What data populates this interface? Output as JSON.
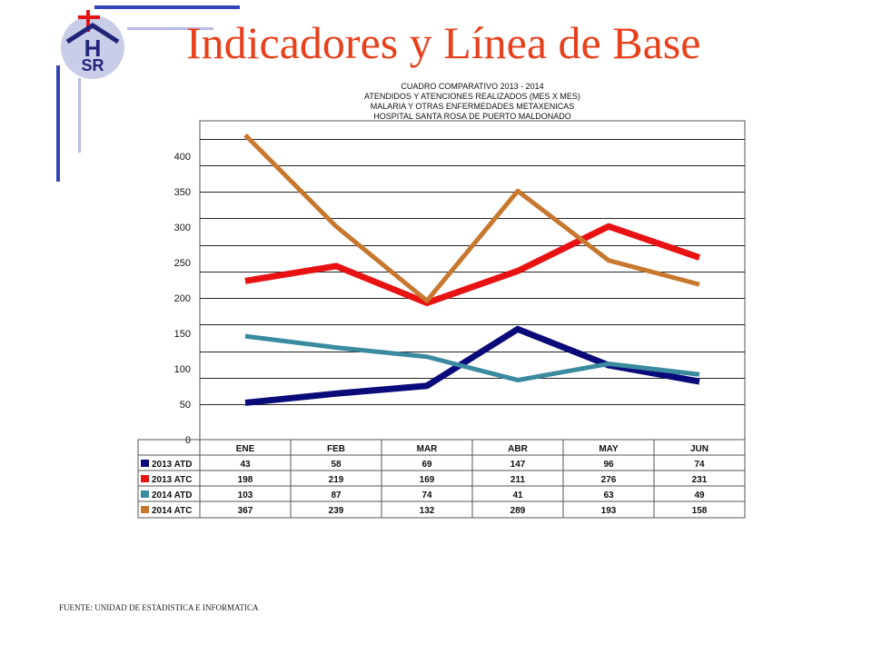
{
  "slide": {
    "title": "Indicadores y Línea de Base",
    "logo_text": {
      "top": "H",
      "bottom": "SR"
    },
    "source": "FUENTE: UNIDAD DE ESTADISTICA E INFORMATICA"
  },
  "colors": {
    "title": "#e8401c",
    "accent_blue": "#3344bb",
    "accent_light": "#b9bde6",
    "s2013atd": "#0a0a7a",
    "s2013atc": "#e81212",
    "s2014atd": "#3a8aa0",
    "s2014atc": "#c8772e"
  },
  "chart_data": {
    "type": "line",
    "title_lines": [
      "CUADRO COMPARATIVO  2013 - 2014",
      "ATENDIDOS  Y ATENCIONES  REALIZADOS (MES X MES)",
      "MALARIA Y OTRAS ENFERMEDADES METAXENICAS",
      "HOSPITAL  SANTA ROSA DE PUERTO MALDONADO"
    ],
    "categories": [
      "ENE",
      "FEB",
      "MAR",
      "ABR",
      "MAY",
      "JUN"
    ],
    "ylim": [
      0,
      450
    ],
    "y_ticks": [
      0,
      50,
      100,
      150,
      200,
      250,
      300,
      350,
      400
    ],
    "grid": true,
    "series": [
      {
        "name": "2013 ATD",
        "color": "#0a0a7a",
        "values": [
          43,
          58,
          69,
          147,
          96,
          74
        ]
      },
      {
        "name": "2013 ATC",
        "color": "#e81212",
        "values": [
          198,
          219,
          169,
          211,
          276,
          231
        ]
      },
      {
        "name": "2014 ATD",
        "color": "#3a8aa0",
        "values": [
          103,
          87,
          74,
          41,
          63,
          49
        ]
      },
      {
        "name": "2014 ATC",
        "color": "#c8772e",
        "values": [
          367,
          239,
          132,
          289,
          193,
          158
        ]
      }
    ],
    "plotted_values": [
      [
        52,
        65,
        76,
        156,
        105,
        82
      ],
      [
        224,
        245,
        193,
        238,
        301,
        257
      ],
      [
        146,
        130,
        117,
        84,
        107,
        92
      ],
      [
        430,
        301,
        196,
        351,
        253,
        219
      ]
    ],
    "legend": "table-below"
  }
}
